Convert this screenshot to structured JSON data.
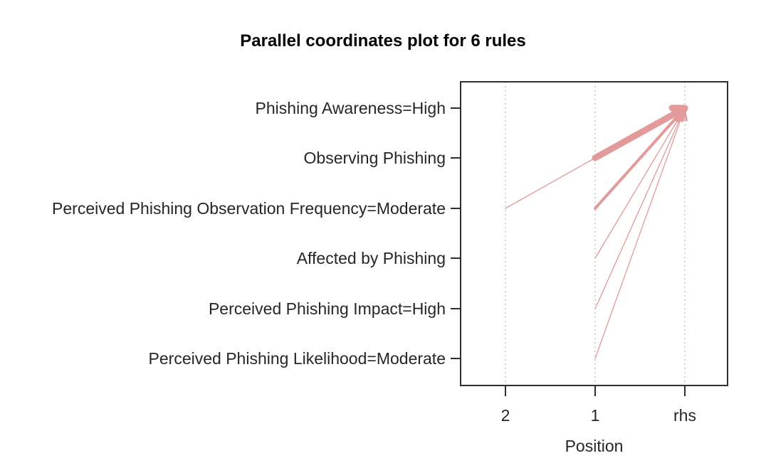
{
  "figure": {
    "title": "Parallel coordinates plot for 6 rules"
  },
  "chart_data": {
    "type": "line",
    "subtype": "parallel-coordinates-arrows",
    "title": "Parallel coordinates plot for 6 rules",
    "xlabel": "Position",
    "ylabel": "",
    "n_rules": 6,
    "x_tick_labels": [
      "2",
      "1",
      "rhs"
    ],
    "y_item_labels": [
      "Phishing Awareness=High",
      "Observing Phishing",
      "Perceived Phishing Observation Frequency=Moderate",
      "Affected by Phishing",
      "Perceived Phishing Impact=High",
      "Perceived Phishing Likelihood=Moderate"
    ],
    "grid": "dotted-vertical",
    "legend": "none",
    "line_color": "#E29A9A",
    "grid_color": "#C9C9C9",
    "axis_color": "#2E2E2E",
    "label_color": "#262626",
    "rules": [
      {
        "points": [
          [
            0,
            2
          ],
          [
            1,
            1
          ],
          [
            2,
            0
          ]
        ],
        "width": 1.3
      },
      {
        "points": [
          [
            1,
            3
          ],
          [
            2,
            0
          ]
        ],
        "width": 1.3
      },
      {
        "points": [
          [
            1,
            4
          ],
          [
            2,
            0
          ]
        ],
        "width": 1.3
      },
      {
        "points": [
          [
            1,
            5
          ],
          [
            2,
            0
          ]
        ],
        "width": 1.3
      },
      {
        "points": [
          [
            1,
            2
          ],
          [
            2,
            0
          ]
        ],
        "width": 4
      },
      {
        "points": [
          [
            1,
            1
          ],
          [
            2,
            0
          ]
        ],
        "width": 9
      }
    ]
  }
}
